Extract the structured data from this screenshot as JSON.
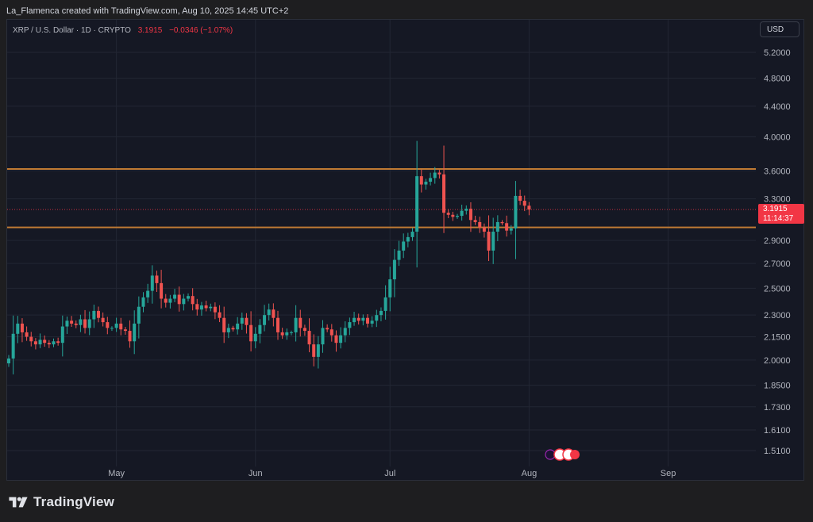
{
  "credit": "La_Flamenca created with TradingView.com, Aug 10, 2025 14:45 UTC+2",
  "symbol": {
    "name": "XRP / U.S. Dollar · 1D · CRYPTO",
    "last": "3.1915",
    "change": "−0.0346 (−1.07%)"
  },
  "currency_button": "USD",
  "price_tag": {
    "price": "3.1915",
    "countdown": "11:14:37"
  },
  "brand": "TradingView",
  "colors": {
    "up": "#26a69a",
    "down": "#ef5350",
    "level": "#c07a33",
    "bg": "#151824"
  },
  "chart_data": {
    "type": "candlestick",
    "scale": "log",
    "y_ticks": [
      1.51,
      1.61,
      1.73,
      1.85,
      2.0,
      2.15,
      2.3,
      2.5,
      2.7,
      2.9,
      3.3,
      3.6,
      4.0,
      4.4,
      4.8,
      5.2
    ],
    "y_tick_labels": [
      "1.5100",
      "1.6100",
      "1.7300",
      "1.8500",
      "2.0000",
      "2.1500",
      "2.3000",
      "2.5000",
      "2.7000",
      "2.9000",
      "3.3000",
      "3.6000",
      "4.0000",
      "4.4000",
      "4.8000",
      "5.2000"
    ],
    "x_labels": [
      {
        "label": "May",
        "date": "2025-05-01"
      },
      {
        "label": "Jun",
        "date": "2025-06-01"
      },
      {
        "label": "Jul",
        "date": "2025-07-01"
      },
      {
        "label": "Aug",
        "date": "2025-08-01"
      },
      {
        "label": "Sep",
        "date": "2025-09-01"
      }
    ],
    "first_date": "2025-04-07",
    "horizontal_levels": [
      3.62,
      3.02
    ],
    "last_price": 3.1915,
    "close_series": [
      2.01,
      2.17,
      2.24,
      2.18,
      2.15,
      2.12,
      2.1,
      2.13,
      2.11,
      2.1,
      2.12,
      2.11,
      2.22,
      2.26,
      2.24,
      2.23,
      2.27,
      2.21,
      2.27,
      2.33,
      2.28,
      2.25,
      2.21,
      2.21,
      2.24,
      2.2,
      2.19,
      2.12,
      2.24,
      2.36,
      2.43,
      2.48,
      2.6,
      2.54,
      2.42,
      2.39,
      2.42,
      2.45,
      2.38,
      2.42,
      2.44,
      2.38,
      2.34,
      2.37,
      2.35,
      2.36,
      2.32,
      2.28,
      2.18,
      2.21,
      2.2,
      2.24,
      2.28,
      2.23,
      2.12,
      2.17,
      2.23,
      2.3,
      2.34,
      2.28,
      2.18,
      2.16,
      2.18,
      2.18,
      2.28,
      2.21,
      2.19,
      2.1,
      2.02,
      2.1,
      2.21,
      2.2,
      2.16,
      2.11,
      2.16,
      2.21,
      2.25,
      2.28,
      2.26,
      2.28,
      2.24,
      2.26,
      2.3,
      2.33,
      2.43,
      2.57,
      2.73,
      2.81,
      2.89,
      2.93,
      2.98,
      3.54,
      3.45,
      3.48,
      3.52,
      3.58,
      3.56,
      3.16,
      3.14,
      3.12,
      3.13,
      3.18,
      3.2,
      3.09,
      3.07,
      3.02,
      2.98,
      2.81,
      2.98,
      3.07,
      3.06,
      2.99,
      3.01,
      3.33,
      3.28,
      3.23,
      3.1915
    ]
  }
}
